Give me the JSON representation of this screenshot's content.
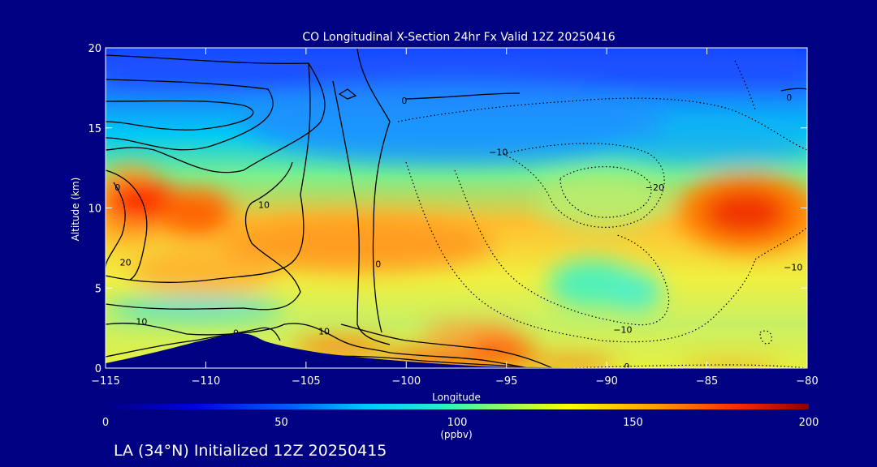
{
  "colors": {
    "background": "#000082",
    "foreground": "#ffffff",
    "contour": "#000000",
    "terrain": "#000082"
  },
  "chart_data": {
    "type": "heatmap",
    "title": "CO Longitudinal X-Section 24hr  Fx Valid 12Z 20250416",
    "xlabel": "Longitude",
    "ylabel": "Altitude (km)",
    "xlim": [
      -115,
      -80
    ],
    "ylim": [
      0,
      20
    ],
    "x_ticks": [
      -115,
      -110,
      -105,
      -100,
      -95,
      -90,
      -85,
      -80
    ],
    "x_tick_labels": [
      "−115",
      "−110",
      "−105",
      "−100",
      "−95",
      "−90",
      "−85",
      "−80"
    ],
    "y_ticks": [
      0,
      5,
      10,
      15,
      20
    ],
    "y_tick_labels": [
      "0",
      "5",
      "10",
      "15",
      "20"
    ],
    "grid": false,
    "colorbar": {
      "min": 0,
      "max": 200,
      "ticks": [
        0,
        50,
        100,
        150,
        200
      ],
      "tick_labels": [
        "0",
        "50",
        "100",
        "150",
        "200"
      ],
      "unit": "(ppbv)",
      "colormap": "rainbow (blue → cyan → green → yellow → orange → red)"
    },
    "co_field_hotspots_ppbv": [
      {
        "lon": -113,
        "alt": 10.5,
        "value": 190
      },
      {
        "lon": -83.5,
        "alt": 9.8,
        "value": 180
      },
      {
        "lon": -102,
        "alt": 8.0,
        "value": 150
      },
      {
        "lon": -98,
        "alt": 0.5,
        "value": 175
      },
      {
        "lon": -89,
        "alt": 0.3,
        "value": 165
      }
    ],
    "contour_labels": [
      {
        "text": "0",
        "lon": -114.4,
        "alt": 11.3
      },
      {
        "text": "20",
        "lon": -114.0,
        "alt": 6.6
      },
      {
        "text": "10",
        "lon": -113.2,
        "alt": 2.9
      },
      {
        "text": "0",
        "lon": -108.5,
        "alt": 2.2
      },
      {
        "text": "10",
        "lon": -104.1,
        "alt": 2.3
      },
      {
        "text": "10",
        "lon": -107.1,
        "alt": 10.2
      },
      {
        "text": "0",
        "lon": -101.4,
        "alt": 6.5
      },
      {
        "text": "0",
        "lon": -100.1,
        "alt": 16.7
      },
      {
        "text": "−10",
        "lon": -95.4,
        "alt": 13.5
      },
      {
        "text": "−20",
        "lon": -87.6,
        "alt": 11.3
      },
      {
        "text": "−10",
        "lon": -89.2,
        "alt": 2.4
      },
      {
        "text": "0",
        "lon": -89.0,
        "alt": 0.1
      },
      {
        "text": "0",
        "lon": -80.9,
        "alt": 16.9
      },
      {
        "text": "−10",
        "lon": -80.7,
        "alt": 6.3
      }
    ]
  },
  "footer": {
    "location_label": "LA (34°N) Initialized 12Z 20250415"
  }
}
